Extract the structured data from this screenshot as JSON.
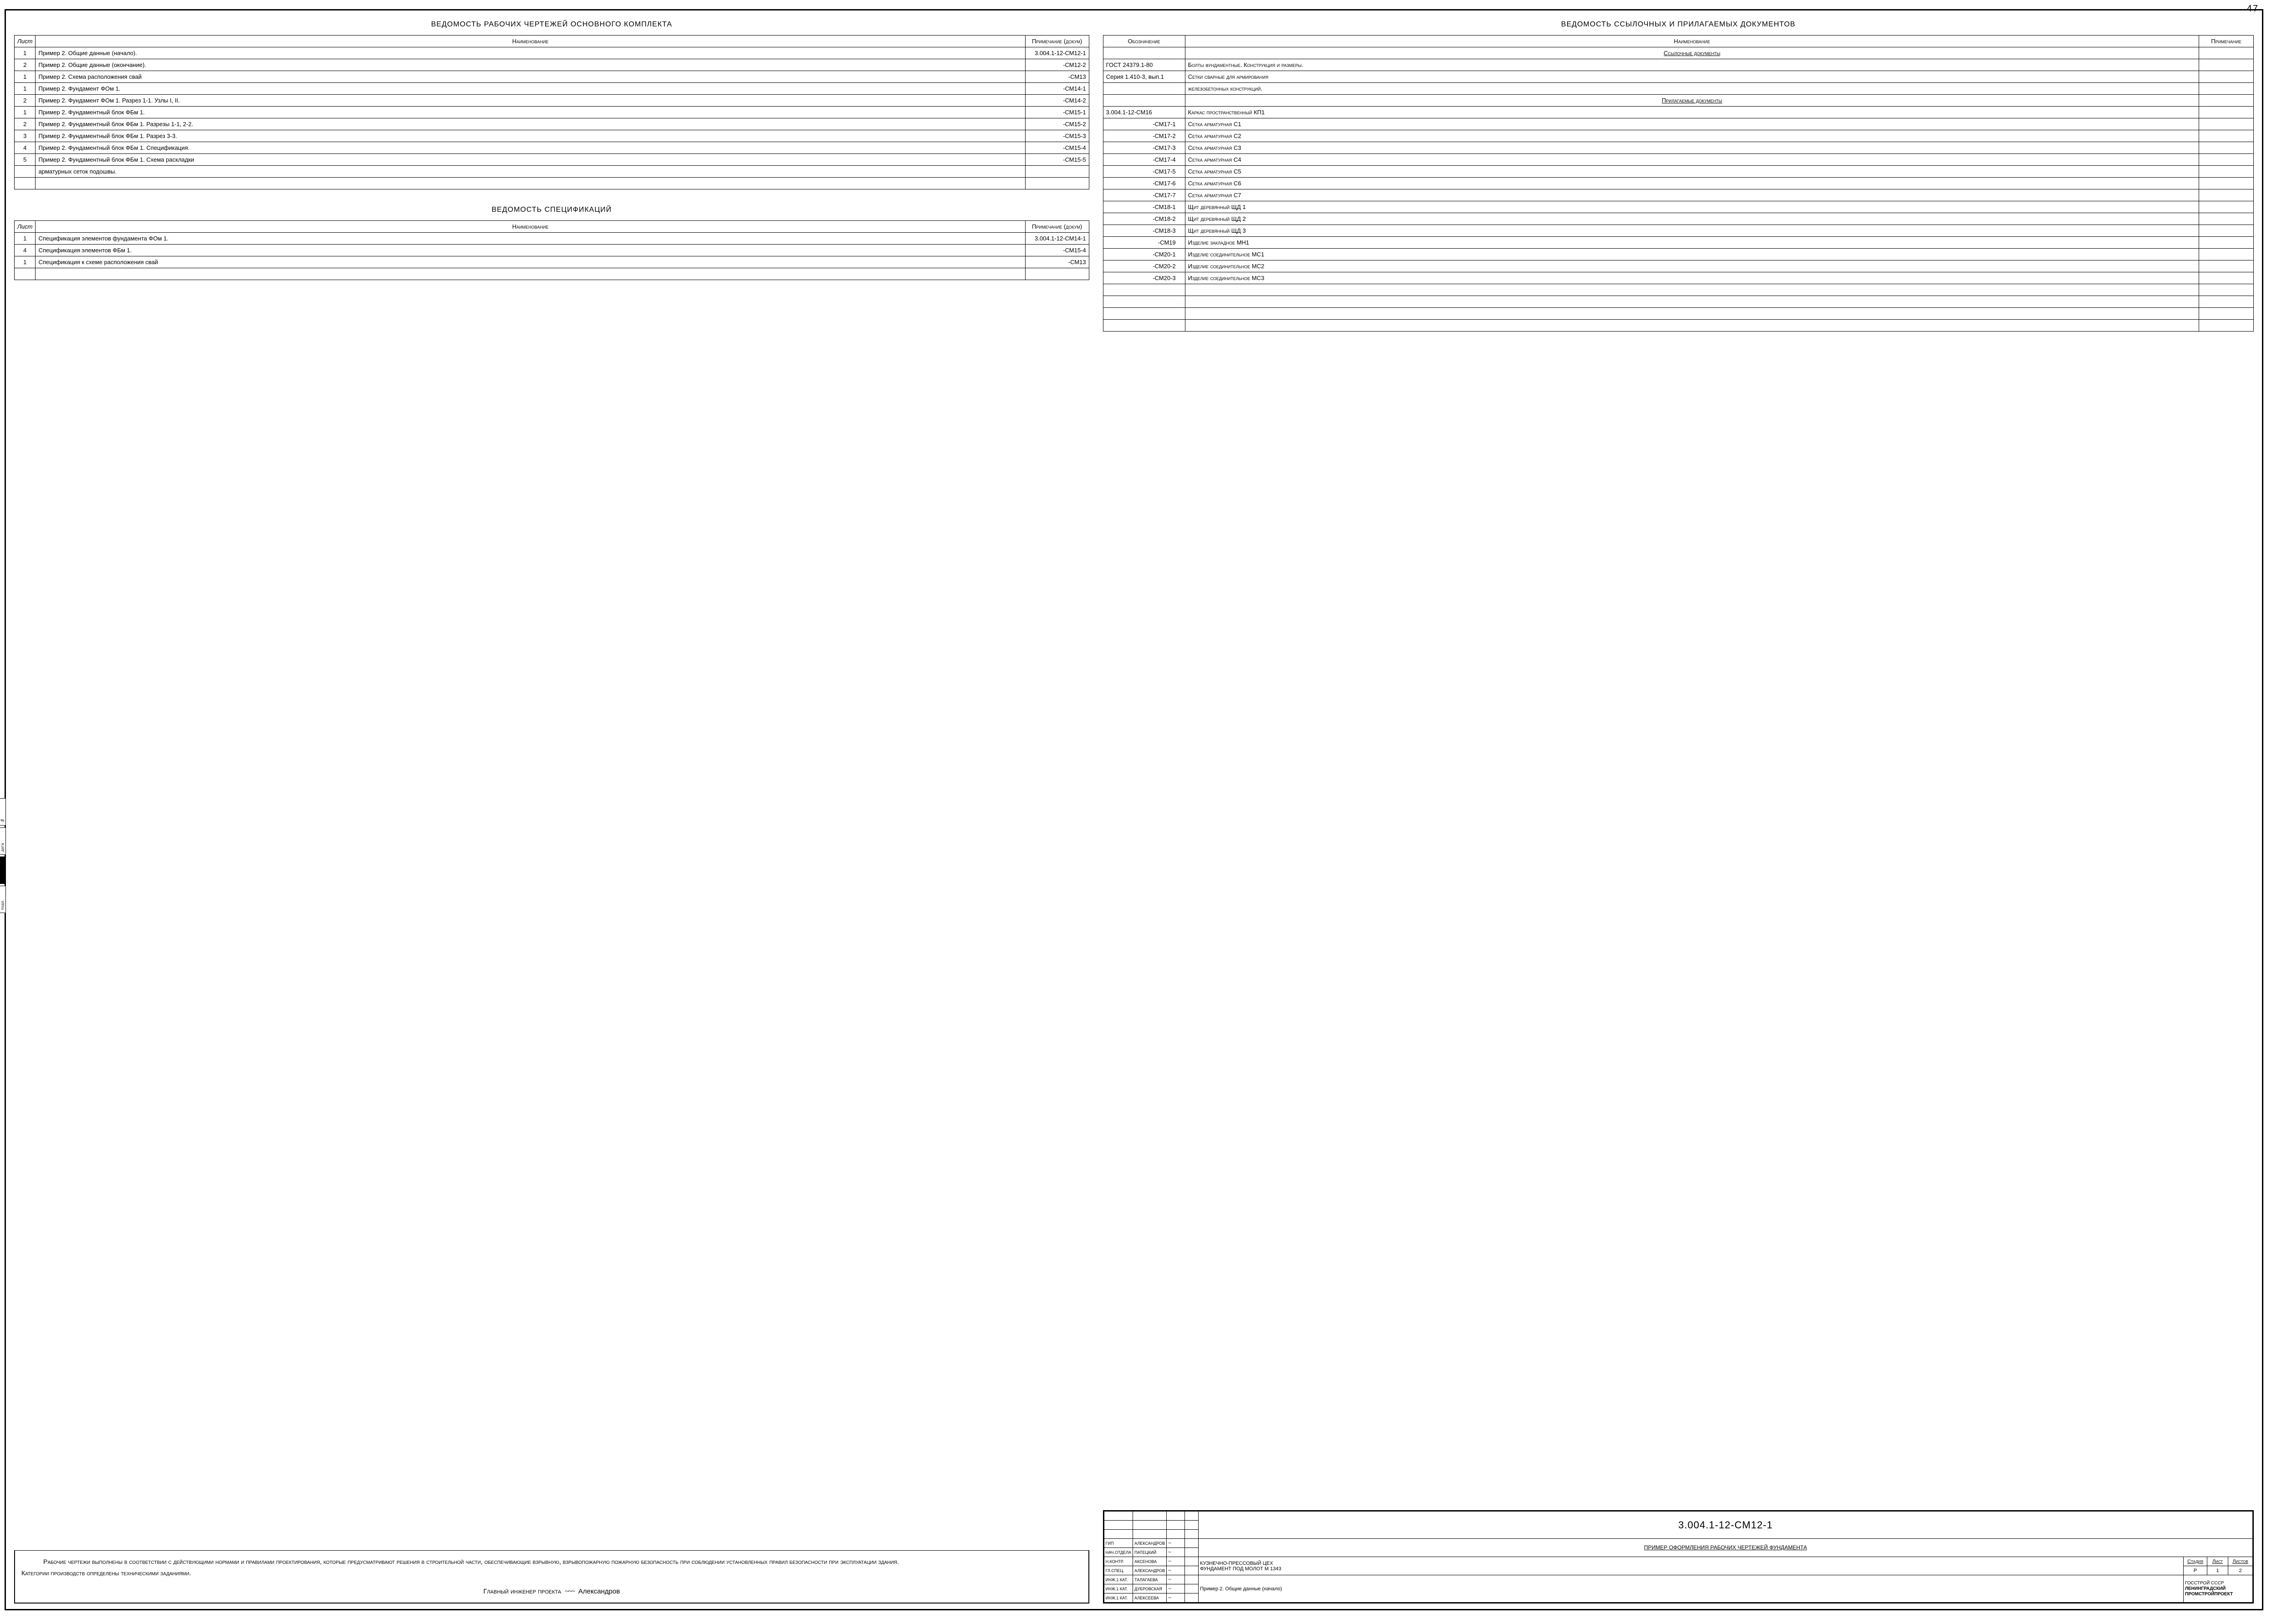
{
  "page_number": "47",
  "left": {
    "title1": "ВЕДОМОСТЬ РАБОЧИХ ЧЕРТЕЖЕЙ ОСНОВНОГО КОМПЛЕКТА",
    "table1_headers": {
      "c1": "Лист",
      "c2": "Наименование",
      "c3": "Примечание (докум)"
    },
    "table1_rows": [
      {
        "n": "1",
        "name": "Пример 2. Общие данные (начало).",
        "note": "3.004.1-12-СМ12-1"
      },
      {
        "n": "2",
        "name": "Пример 2. Общие данные (окончание).",
        "note": "-СМ12-2"
      },
      {
        "n": "1",
        "name": "Пример 2. Схема расположения свай",
        "note": "-СМ13"
      },
      {
        "n": "1",
        "name": "Пример 2. Фундамент ФОм 1.",
        "note": "-СМ14-1"
      },
      {
        "n": "2",
        "name": "Пример 2. Фундамент ФОм 1. Разрез 1-1. Узлы I, II.",
        "note": "-СМ14-2"
      },
      {
        "n": "1",
        "name": "Пример 2. Фундаментный блок ФБм 1.",
        "note": "-СМ15-1"
      },
      {
        "n": "2",
        "name": "Пример 2. Фундаментный блок ФБм 1. Разрезы 1-1, 2-2.",
        "note": "-СМ15-2"
      },
      {
        "n": "3",
        "name": "Пример 2. Фундаментный блок ФБм 1. Разрез 3-3.",
        "note": "-СМ15-3"
      },
      {
        "n": "4",
        "name": "Пример 2. Фундаментный блок ФБм 1. Спецификация.",
        "note": "-СМ15-4"
      },
      {
        "n": "5",
        "name": "Пример 2. Фундаментный блок ФБм 1. Схема раскладки",
        "note": "-СМ15-5"
      },
      {
        "n": "",
        "name": "арматурных сеток подошвы.",
        "note": ""
      },
      {
        "n": "",
        "name": "",
        "note": ""
      }
    ],
    "title2": "ВЕДОМОСТЬ СПЕЦИФИКАЦИЙ",
    "table2_headers": {
      "c1": "Лист",
      "c2": "Наименование",
      "c3": "Примечание (докум)"
    },
    "table2_rows": [
      {
        "n": "1",
        "name": "Спецификация элементов фундамента ФОм 1.",
        "note": "3.004.1-12-СМ14-1"
      },
      {
        "n": "4",
        "name": "Спецификация элементов ФБм 1.",
        "note": "-СМ15-4"
      },
      {
        "n": "1",
        "name": "Спецификация к схеме расположения свай",
        "note": "-СМ13"
      },
      {
        "n": "",
        "name": "",
        "note": ""
      }
    ],
    "note_paragraph_1": "Рабочие чертежи выполнены в соответствии с действующими нормами и правилами проектирования, которые предусматривают решения в строительной части, обеспечивающие взрывную, взрывопожарную пожарную безопасность при соблюдении установленных правил безопасности при эксплуатации здания.",
    "note_paragraph_2": "Категории производств определены техническими заданиями.",
    "chief_label": "Главный инженер проекта",
    "chief_signature": "✶",
    "chief_name": "Александров"
  },
  "right": {
    "title": "ВЕДОМОСТЬ ССЫЛОЧНЫХ И ПРИЛАГАЕМЫХ ДОКУМЕНТОВ",
    "headers": {
      "c1": "Обозначение",
      "c2": "Наименование",
      "c3": "Примечание"
    },
    "rows": [
      {
        "d": "",
        "name": "Ссылочные документы",
        "note": "",
        "style": "sub"
      },
      {
        "d": "ГОСТ 24379.1-80",
        "name": "Болты фундаментные. Конструкция и размеры.",
        "note": ""
      },
      {
        "d": "Серия 1.410-3, вып.1",
        "name": "Сетки сварные для армирования",
        "note": ""
      },
      {
        "d": "",
        "name": "железобетонных конструкций.",
        "note": ""
      },
      {
        "d": "",
        "name": "Прилагаемые документы",
        "note": "",
        "style": "sub"
      },
      {
        "d": "3.004.1-12-СМ16",
        "name": "Каркас пространственный КП1",
        "note": ""
      },
      {
        "d": "-СМ17-1",
        "name": "Сетка арматурная С1",
        "note": "",
        "align": "r"
      },
      {
        "d": "-СМ17-2",
        "name": "Сетка арматурная С2",
        "note": "",
        "align": "r"
      },
      {
        "d": "-СМ17-3",
        "name": "Сетка арматурная С3",
        "note": "",
        "align": "r"
      },
      {
        "d": "-СМ17-4",
        "name": "Сетка арматурная С4",
        "note": "",
        "align": "r"
      },
      {
        "d": "-СМ17-5",
        "name": "Сетка арматурная С5",
        "note": "",
        "align": "r"
      },
      {
        "d": "-СМ17-6",
        "name": "Сетка арматурная С6",
        "note": "",
        "align": "r"
      },
      {
        "d": "-СМ17-7",
        "name": "Сетка арматурная С7",
        "note": "",
        "align": "r"
      },
      {
        "d": "-СМ18-1",
        "name": "Щит деревянный ЩД 1",
        "note": "",
        "align": "r"
      },
      {
        "d": "-СМ18-2",
        "name": "Щит деревянный ЩД 2",
        "note": "",
        "align": "r"
      },
      {
        "d": "-СМ18-3",
        "name": "Щит деревянный ЩД 3",
        "note": "",
        "align": "r"
      },
      {
        "d": "-СМ19",
        "name": "Изделие закладное МН1",
        "note": "",
        "align": "r"
      },
      {
        "d": "-СМ20-1",
        "name": "Изделие соединительное МС1",
        "note": "",
        "align": "r"
      },
      {
        "d": "-СМ20-2",
        "name": "Изделие соединительное МС2",
        "note": "",
        "align": "r"
      },
      {
        "d": "-СМ20-3",
        "name": "Изделие соединительное МС3",
        "note": "",
        "align": "r"
      },
      {
        "d": "",
        "name": "",
        "note": ""
      },
      {
        "d": "",
        "name": "",
        "note": ""
      },
      {
        "d": "",
        "name": "",
        "note": ""
      },
      {
        "d": "",
        "name": "",
        "note": ""
      }
    ]
  },
  "stamp": {
    "roles": [
      {
        "role": "ГИП",
        "name": "АЛЕКСАНДРОВ"
      },
      {
        "role": "НАЧ.ОТДЕЛА",
        "name": "ПАТЕЦКИЙ"
      },
      {
        "role": "Н.КОНТР.",
        "name": "АКСЕНОВА"
      },
      {
        "role": "ГЛ.СПЕЦ.",
        "name": "АЛЕКСАНДРОВ"
      },
      {
        "role": "ИНЖ.1 КАТ.",
        "name": "ТАЛАГАЕВА"
      },
      {
        "role": "ИНЖ.1 КАТ.",
        "name": "ДУБРОВСКАЯ"
      },
      {
        "role": "ИНЖ.1 КАТ.",
        "name": "АЛЕКСЕЕВА"
      }
    ],
    "code": "3.004.1-12-СМ12-1",
    "proj_title": "ПРИМЕР ОФОРМЛЕНИЯ РАБОЧИХ ЧЕРТЕЖЕЙ ФУНДАМЕНТА",
    "object": "КУЗНЕЧНО-ПРЕССОВЫЙ ЦЕХ",
    "subobject": "ФУНДАМЕНТ ПОД МОЛОТ М 1343",
    "sheet_title": "Пример 2. Общие данные (начало)",
    "tbl_headers": {
      "stage": "Стадия",
      "sheet": "Лист",
      "sheets": "Листов"
    },
    "stage": "Р",
    "sheet": "1",
    "sheets": "2",
    "org1": "ГОССТРОЙ СССР",
    "org2": "ЛЕНИНГРАДСКИЙ ПРОМСТРОЙПРОЕКТ"
  },
  "margin_labels": [
    "Взам.инв.№",
    "Подпись и дата",
    "Инв.№ подл."
  ],
  "colors": {
    "line": "#000000",
    "bg": "#ffffff"
  }
}
